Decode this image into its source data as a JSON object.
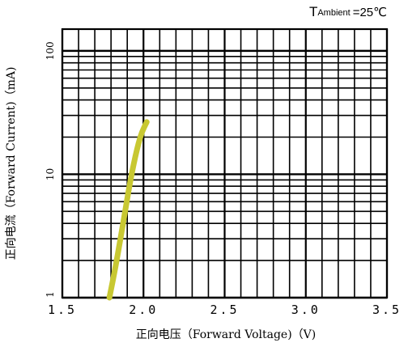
{
  "chart_data": {
    "type": "line",
    "title": "",
    "annotation": {
      "main": "T",
      "subscript": "Ambient",
      "value": "=25℃"
    },
    "xlabel": "正向电压（Forward Voltage)（V)",
    "ylabel": "正向电流（Forward Current)（mA)",
    "x_ticks": [
      "1.5",
      "2.0",
      "2.5",
      "3.0",
      "3.5"
    ],
    "y_ticks": [
      "1",
      "10",
      "100"
    ],
    "xlim": [
      1.5,
      3.5
    ],
    "ylim": [
      1,
      150
    ],
    "y_scale": "log",
    "grid": true,
    "curve_color": "#c8c832",
    "series": [
      {
        "x": [
          1.79,
          1.81,
          1.83,
          1.85,
          1.87,
          1.89,
          1.91,
          1.93,
          1.95,
          1.97,
          1.99,
          2.02
        ],
        "y": [
          1.0,
          1.35,
          1.85,
          2.6,
          3.7,
          5.3,
          7.6,
          10.5,
          14.0,
          18.0,
          22.0,
          26.5
        ]
      }
    ]
  }
}
